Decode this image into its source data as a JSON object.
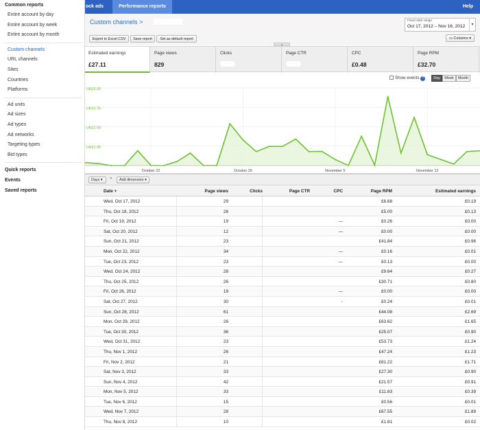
{
  "sidebar": {
    "sections": [
      {
        "id": "common",
        "label": "Common reports",
        "items": [
          "Entire account by day",
          "Entire account by week",
          "Entire account by month"
        ]
      },
      {
        "id": "channels",
        "items": [
          "Custom channels",
          "URL channels",
          "Sites",
          "Countries",
          "Platforms"
        ]
      },
      {
        "id": "ads",
        "items": [
          "Ad units",
          "Ad sizes",
          "Ad types",
          "Ad networks",
          "Targeting types",
          "Bid types"
        ]
      }
    ],
    "quick_reports": "Quick reports",
    "events": "Events",
    "saved_reports": "Saved reports",
    "active_item": "Custom channels"
  },
  "topbar": {
    "tab_stock": "ock ads",
    "tab_performance": "Performance reports",
    "help": "Help"
  },
  "header": {
    "title": "Custom channels",
    "title_arrow": ">",
    "export_label": "Export to Excel CSV",
    "save_label": "Save report",
    "default_label": "Set as default report",
    "date_range_label": "Fixed date range",
    "date_range_value": "Oct 17, 2012 – Nov 16, 2012",
    "columns_label": "Columns"
  },
  "metrics": [
    {
      "label": "Estimated earnings",
      "value": "£27.11"
    },
    {
      "label": "Page views",
      "value": "829"
    },
    {
      "label": "Clicks",
      "value": ""
    },
    {
      "label": "Page CTR",
      "value": ""
    },
    {
      "label": "CPC",
      "value": "£0.48"
    },
    {
      "label": "Page RPM",
      "value": "£32.70"
    }
  ],
  "chart_controls": {
    "show_events": "Show events",
    "help": "?",
    "day": "Day",
    "week": "Week",
    "month": "Month"
  },
  "chart_data": {
    "type": "area",
    "ylabel": "",
    "y_ticks": [
      "UK£5.00",
      "UK£3.75",
      "UK£2.50",
      "UK£1.25"
    ],
    "x_ticks": [
      "October 22",
      "October 29",
      "November 5",
      "November 12"
    ],
    "ylim": [
      0,
      5
    ],
    "series": [
      {
        "values": [
          0.19,
          0.13,
          0.0,
          0.0,
          0.96,
          0.01,
          0.0,
          0.27,
          0.8,
          0.0,
          0.01,
          2.69,
          1.65,
          0.9,
          1.24,
          1.23,
          1.71,
          0.9,
          0.91,
          0.39,
          0.01,
          1.89,
          0.02,
          4.45,
          0.8,
          3.1,
          0.7,
          0.4,
          0.1,
          0.9,
          0.95
        ]
      }
    ],
    "color": "#6ac22e"
  },
  "table_toolbar": {
    "days": "Days",
    "sep": "»",
    "add_dimension": "Add dimension"
  },
  "table": {
    "headers": {
      "date": "Date",
      "page_views": "Page views",
      "clicks": "Clicks",
      "page_ctr": "Page CTR",
      "cpc": "CPC",
      "page_rpm": "Page RPM",
      "earnings": "Estimated earnings"
    },
    "sort_indicator": "+",
    "rows": [
      {
        "date": "Wed, Oct 17, 2012",
        "pv": "29",
        "cpc": "",
        "rpm": "£6.68",
        "earn": "£0.19"
      },
      {
        "date": "Thu, Oct 18, 2012",
        "pv": "26",
        "cpc": "",
        "rpm": "£5.00",
        "earn": "£0.13"
      },
      {
        "date": "Fri, Oct 19, 2012",
        "pv": "19",
        "cpc": "—",
        "rpm": "£0.26",
        "earn": "£0.00"
      },
      {
        "date": "Sat, Oct 20, 2012",
        "pv": "12",
        "cpc": "—",
        "rpm": "£0.00",
        "earn": "£0.00"
      },
      {
        "date": "Sun, Oct 21, 2012",
        "pv": "23",
        "cpc": "",
        "rpm": "£41.84",
        "earn": "£0.96"
      },
      {
        "date": "Mon, Oct 22, 2012",
        "pv": "34",
        "cpc": "—",
        "rpm": "£0.16",
        "earn": "£0.01"
      },
      {
        "date": "Tue, Oct 23, 2012",
        "pv": "23",
        "cpc": "—",
        "rpm": "£0.13",
        "earn": "£0.00"
      },
      {
        "date": "Wed, Oct 24, 2012",
        "pv": "28",
        "cpc": "",
        "rpm": "£9.64",
        "earn": "£0.27"
      },
      {
        "date": "Thu, Oct 25, 2012",
        "pv": "26",
        "cpc": "",
        "rpm": "£30.71",
        "earn": "£0.80"
      },
      {
        "date": "Fri, Oct 26, 2012",
        "pv": "19",
        "cpc": "—",
        "rpm": "£0.00",
        "earn": "£0.00"
      },
      {
        "date": "Sat, Oct 27, 2012",
        "pv": "30",
        "cpc": "-",
        "rpm": "£0.24",
        "earn": "£0.01"
      },
      {
        "date": "Sun, Oct 28, 2012",
        "pv": "61",
        "cpc": "",
        "rpm": "£44.08",
        "earn": "£2.69"
      },
      {
        "date": "Mon, Oct 29, 2012",
        "pv": "26",
        "cpc": "",
        "rpm": "£63.62",
        "earn": "£1.65"
      },
      {
        "date": "Tue, Oct 30, 2012",
        "pv": "36",
        "cpc": "",
        "rpm": "£25.07",
        "earn": "£0.90"
      },
      {
        "date": "Wed, Oct 31, 2012",
        "pv": "23",
        "cpc": "",
        "rpm": "£53.73",
        "earn": "£1.24"
      },
      {
        "date": "Thu, Nov 1, 2012",
        "pv": "26",
        "cpc": "",
        "rpm": "£47.24",
        "earn": "£1.23"
      },
      {
        "date": "Fri, Nov 2, 2012",
        "pv": "21",
        "cpc": "",
        "rpm": "£81.22",
        "earn": "£1.71"
      },
      {
        "date": "Sat, Nov 3, 2012",
        "pv": "33",
        "cpc": "",
        "rpm": "£27.30",
        "earn": "£0.90"
      },
      {
        "date": "Sun, Nov 4, 2012",
        "pv": "42",
        "cpc": "",
        "rpm": "£21.57",
        "earn": "£0.91"
      },
      {
        "date": "Mon, Nov 5, 2012",
        "pv": "33",
        "cpc": "",
        "rpm": "£11.83",
        "earn": "£0.39"
      },
      {
        "date": "Tue, Nov 6, 2012",
        "pv": "15",
        "cpc": "",
        "rpm": "£0.56",
        "earn": "£0.01"
      },
      {
        "date": "Wed, Nov 7, 2012",
        "pv": "28",
        "cpc": "",
        "rpm": "£67.55",
        "earn": "£1.89"
      },
      {
        "date": "Thu, Nov 8, 2012",
        "pv": "10",
        "cpc": "",
        "rpm": "£1.81",
        "earn": "£0.02"
      }
    ]
  }
}
